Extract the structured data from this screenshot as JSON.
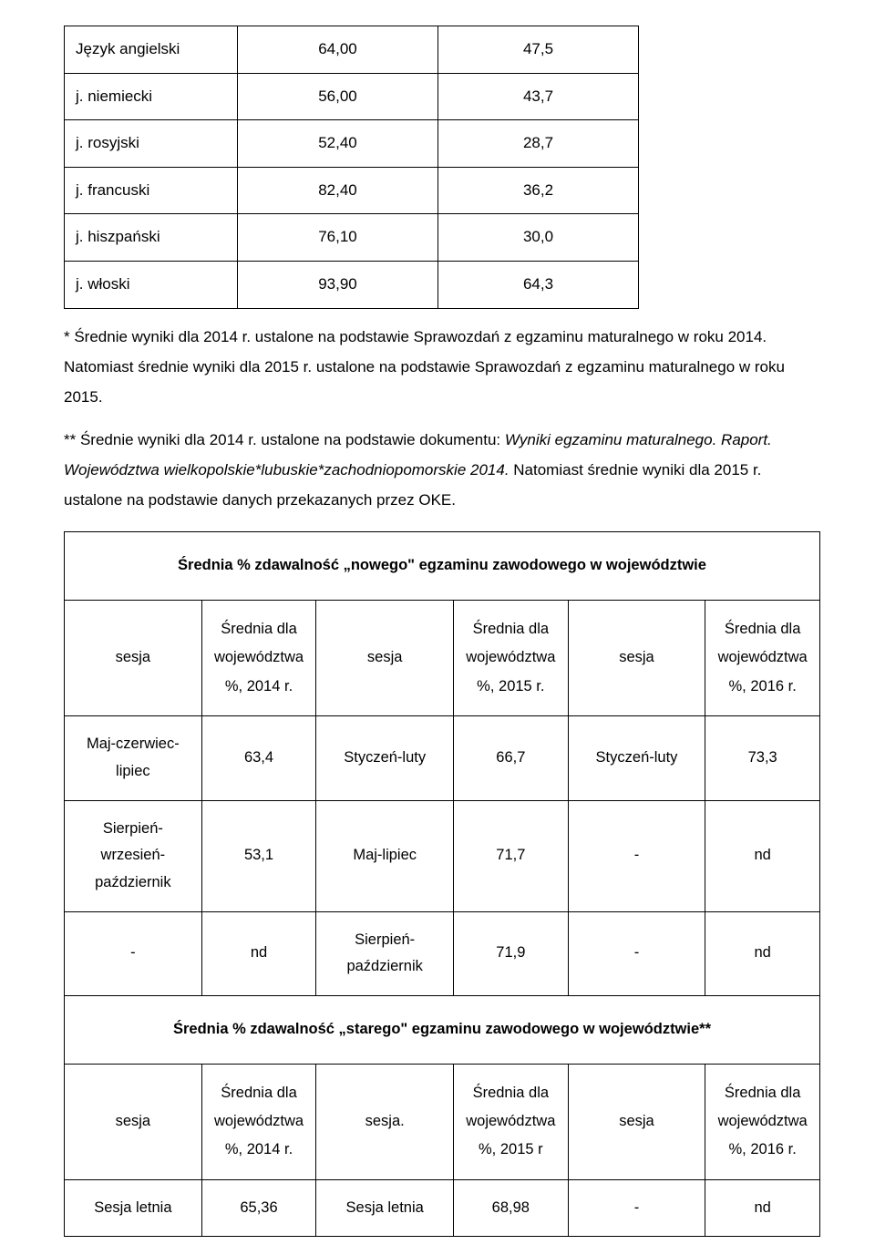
{
  "table1": {
    "rows": [
      {
        "label": "Język angielski",
        "v1": "64,00",
        "v2": "47,5"
      },
      {
        "label": "j. niemiecki",
        "v1": "56,00",
        "v2": "43,7"
      },
      {
        "label": "j. rosyjski",
        "v1": "52,40",
        "v2": "28,7"
      },
      {
        "label": "j. francuski",
        "v1": "82,40",
        "v2": "36,2"
      },
      {
        "label": "j. hiszpański",
        "v1": "76,10",
        "v2": "30,0"
      },
      {
        "label": "j. włoski",
        "v1": "93,90",
        "v2": "64,3"
      }
    ]
  },
  "para1": {
    "p1": "* Średnie wyniki dla 2014 r. ustalone na podstawie Sprawozdań z egzaminu maturalnego w roku 2014. Natomiast średnie wyniki dla 2015 r. ustalone na podstawie Sprawozdań z egzaminu maturalnego w roku 2015.",
    "p2a": "** Średnie wyniki dla 2014 r. ustalone na podstawie dokumentu: ",
    "p2b": "Wyniki egzaminu maturalnego. Raport. Województwa wielkopolskie*lubuskie*zachodniopomorskie 2014.",
    "p2c": " Natomiast średnie wyniki dla 2015 r. ustalone na podstawie danych przekazanych przez OKE."
  },
  "table2": {
    "title1": "Średnia % zdawalność „nowego\" egzaminu zawodowego w województwie",
    "hdr": {
      "c0": "sesja",
      "c1": "Średnia dla województwa %, 2014 r.",
      "c2": "sesja",
      "c3": "Średnia dla województwa %, 2015 r.",
      "c4": "sesja",
      "c5": "Średnia dla województwa %, 2016 r."
    },
    "rowsA": [
      {
        "c0": "Maj-czerwiec-lipiec",
        "c1": "63,4",
        "c2": "Styczeń-luty",
        "c3": "66,7",
        "c4": "Styczeń-luty",
        "c5": "73,3"
      },
      {
        "c0": "Sierpień-wrzesień-październik",
        "c1": "53,1",
        "c2": "Maj-lipiec",
        "c3": "71,7",
        "c4": "-",
        "c5": "nd"
      },
      {
        "c0": "-",
        "c1": "nd",
        "c2": "Sierpień-październik",
        "c3": "71,9",
        "c4": "-",
        "c5": "nd"
      }
    ],
    "title2": "Średnia % zdawalność „starego\" egzaminu zawodowego w województwie**",
    "hdr2": {
      "c0": "sesja",
      "c1": "Średnia dla województwa %, 2014 r.",
      "c2": "sesja.",
      "c3": "Średnia dla województwa %, 2015 r",
      "c4": "sesja",
      "c5": "Średnia dla województwa %, 2016 r."
    },
    "rowsB": [
      {
        "c0": "Sesja letnia",
        "c1": "65,36",
        "c2": "Sesja letnia",
        "c3": "68,98",
        "c4": "-",
        "c5": "nd"
      }
    ]
  }
}
